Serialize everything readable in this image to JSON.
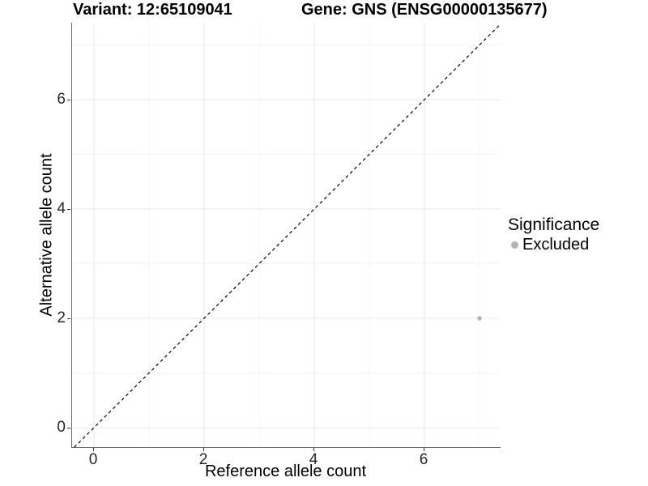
{
  "figure": {
    "title_left": "Variant: 12:65109041",
    "title_right": "Gene: GNS (ENSG00000135677)"
  },
  "axes": {
    "x_label": "Reference allele count",
    "y_label": "Alternative allele count"
  },
  "legend": {
    "title": "Significance",
    "entries": [
      {
        "label": "Excluded",
        "color": "#b3b3b3"
      }
    ]
  },
  "chart_data": {
    "type": "scatter",
    "title": "Variant: 12:65109041    Gene: GNS (ENSG00000135677)",
    "xlabel": "Reference allele count",
    "ylabel": "Alternative allele count",
    "xlim": [
      -0.4,
      7.4
    ],
    "ylim": [
      -0.36,
      7.41
    ],
    "x_ticks": [
      0,
      2,
      4,
      6
    ],
    "y_ticks": [
      0,
      2,
      4,
      6
    ],
    "x_minor_ticks": [
      1,
      3,
      5,
      7
    ],
    "y_minor_ticks": [
      1,
      3,
      5,
      7
    ],
    "grid": true,
    "legend_position": "right",
    "series": [
      {
        "name": "Excluded",
        "color": "#b3b3b3",
        "points": [
          {
            "x": 7,
            "y": 2
          }
        ]
      }
    ],
    "reference_line": {
      "kind": "identity y=x",
      "style": "dashed",
      "color": "#000000"
    },
    "colors": {
      "grid_major": "#e8e8e8",
      "grid_minor": "#f4f4f4",
      "axis_line": "#666666",
      "tick": "#333333",
      "tick_text": "#262626",
      "point": "#b3b3b3"
    }
  }
}
